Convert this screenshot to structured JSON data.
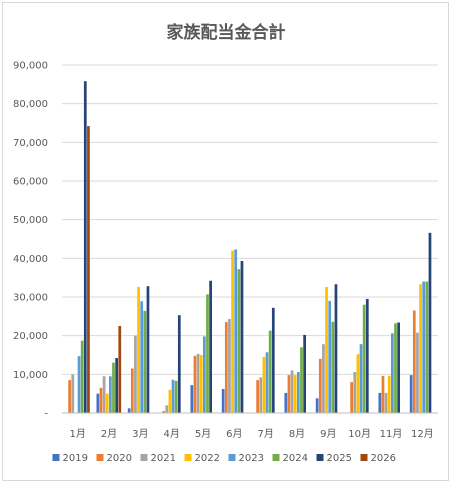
{
  "chart_data": {
    "type": "bar",
    "title": "家族配当金合計",
    "xlabel": "",
    "ylabel": "",
    "ylim": [
      0,
      90000
    ],
    "yticks": [
      0,
      10000,
      20000,
      30000,
      40000,
      50000,
      60000,
      70000,
      80000,
      90000
    ],
    "ytick_labels": [
      "-",
      "10,000",
      "20,000",
      "30,000",
      "40,000",
      "50,000",
      "60,000",
      "70,000",
      "80,000",
      "90,000"
    ],
    "grid": true,
    "legend_position": "bottom",
    "categories": [
      "1月",
      "2月",
      "3月",
      "4月",
      "5月",
      "6月",
      "7月",
      "8月",
      "9月",
      "10月",
      "11月",
      "12月"
    ],
    "series": [
      {
        "name": "2019",
        "color": "#4472C4",
        "values": [
          0,
          5000,
          1200,
          0,
          7200,
          6200,
          0,
          5200,
          3800,
          0,
          5200,
          9800
        ]
      },
      {
        "name": "2020",
        "color": "#ED7D31",
        "values": [
          8500,
          6500,
          11500,
          500,
          14800,
          23500,
          8500,
          9800,
          14000,
          8000,
          9600,
          26500
        ]
      },
      {
        "name": "2021",
        "color": "#A5A5A5",
        "values": [
          10000,
          9500,
          20000,
          2000,
          15300,
          24300,
          9200,
          11000,
          17800,
          10600,
          5200,
          20800
        ]
      },
      {
        "name": "2022",
        "color": "#FFC000",
        "values": [
          0,
          5000,
          32600,
          6000,
          15000,
          42000,
          14500,
          9800,
          32600,
          15200,
          9600,
          33300
        ]
      },
      {
        "name": "2023",
        "color": "#5B9BD5",
        "values": [
          14700,
          9500,
          28900,
          8600,
          19800,
          42300,
          15700,
          10600,
          29000,
          17800,
          20600,
          34000
        ]
      },
      {
        "name": "2024",
        "color": "#70AD47",
        "values": [
          18700,
          13000,
          26400,
          8300,
          30700,
          37200,
          21300,
          17000,
          23600,
          28000,
          23200,
          34000
        ]
      },
      {
        "name": "2025",
        "color": "#264478",
        "values": [
          85800,
          14200,
          32800,
          25300,
          34200,
          39300,
          27200,
          20200,
          33300,
          29500,
          23400,
          46600
        ]
      },
      {
        "name": "2026",
        "color": "#9E480E",
        "values": [
          74200,
          22500,
          0,
          0,
          0,
          0,
          0,
          0,
          0,
          0,
          0,
          0
        ]
      }
    ]
  }
}
